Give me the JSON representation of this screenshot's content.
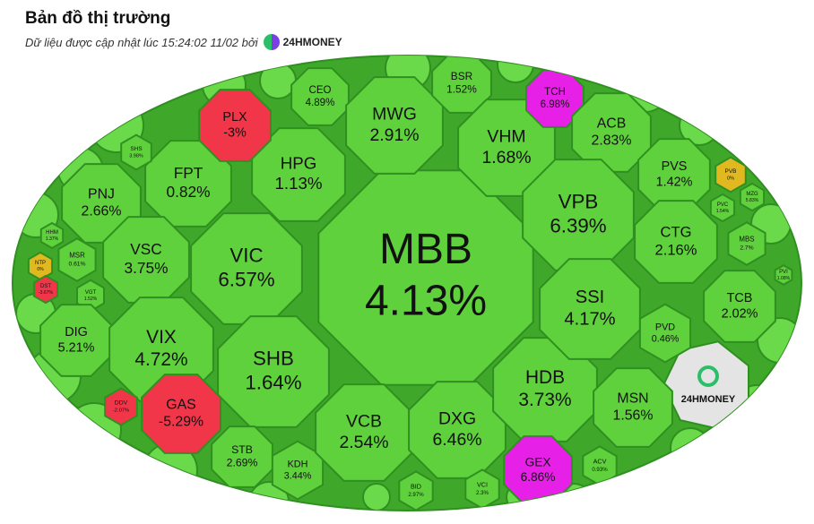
{
  "chart_data": {
    "type": "treemap",
    "title": "Bản đồ thị trường",
    "subtitle": "Dữ liệu được cập nhật lúc 15:24:02 11/02 bởi",
    "brand": "24HMONEY",
    "categories": [
      "MBB",
      "VIC",
      "HPG",
      "FPT",
      "PLX",
      "CEO",
      "MWG",
      "BSR",
      "VHM",
      "TCH",
      "ACB",
      "VPB",
      "PVS",
      "PVB",
      "MZG",
      "PVC",
      "MBS",
      "CTG",
      "PNJ",
      "SHS",
      "HHM",
      "NTP",
      "MSR",
      "DST",
      "VGT",
      "VSC",
      "DIG",
      "VIX",
      "DDV",
      "GAS",
      "SHB",
      "STB",
      "KDH",
      "VCB",
      "BID",
      "DXG",
      "VCI",
      "HDB",
      "GEX",
      "SSI",
      "PVD",
      "TCB",
      "PVI",
      "MSN",
      "ACV"
    ],
    "values": [
      4.13,
      6.57,
      1.13,
      0.82,
      -3,
      4.89,
      2.91,
      1.52,
      1.68,
      6.98,
      2.83,
      6.39,
      1.42,
      0,
      5.83,
      1.54,
      2.7,
      2.16,
      2.66,
      3.98,
      1.37,
      0,
      0.61,
      -3.67,
      1.52,
      3.75,
      5.21,
      4.72,
      -2.07,
      -5.29,
      1.64,
      2.69,
      3.44,
      2.54,
      2.97,
      6.46,
      2.3,
      3.73,
      6.86,
      4.17,
      0.46,
      2.02,
      1.08,
      1.56,
      0.93
    ],
    "value_labels": [
      "4.13%",
      "6.57%",
      "1.13%",
      "0.82%",
      "-3%",
      "4.89%",
      "2.91%",
      "1.52%",
      "1.68%",
      "6.98%",
      "2.83%",
      "6.39%",
      "1.42%",
      "0%",
      "5.83%",
      "1.54%",
      "2.7%",
      "2.16%",
      "2.66%",
      "3.98%",
      "1.37%",
      "0%",
      "0.61%",
      "-3.67%",
      "1.52%",
      "3.75%",
      "5.21%",
      "4.72%",
      "-2.07%",
      "-5.29%",
      "1.64%",
      "2.69%",
      "3.44%",
      "2.54%",
      "2.97%",
      "6.46%",
      "2.3%",
      "3.73%",
      "6.86%",
      "4.17%",
      "0.46%",
      "2.02%",
      "1.08%",
      "1.56%",
      "0.93%"
    ],
    "colors": [
      "#5fd13c",
      "#5fd13c",
      "#5fd13c",
      "#5fd13c",
      "#f2364a",
      "#5fd13c",
      "#5fd13c",
      "#5fd13c",
      "#5fd13c",
      "#e620e6",
      "#5fd13c",
      "#5fd13c",
      "#5fd13c",
      "#e0b820",
      "#5fd13c",
      "#5fd13c",
      "#5fd13c",
      "#5fd13c",
      "#5fd13c",
      "#5fd13c",
      "#5fd13c",
      "#e0b820",
      "#5fd13c",
      "#f2364a",
      "#5fd13c",
      "#5fd13c",
      "#5fd13c",
      "#5fd13c",
      "#f2364a",
      "#f2364a",
      "#5fd13c",
      "#5fd13c",
      "#5fd13c",
      "#5fd13c",
      "#5fd13c",
      "#5fd13c",
      "#5fd13c",
      "#5fd13c",
      "#e620e6",
      "#5fd13c",
      "#5fd13c",
      "#5fd13c",
      "#5fd13c",
      "#5fd13c",
      "#5fd13c"
    ]
  }
}
